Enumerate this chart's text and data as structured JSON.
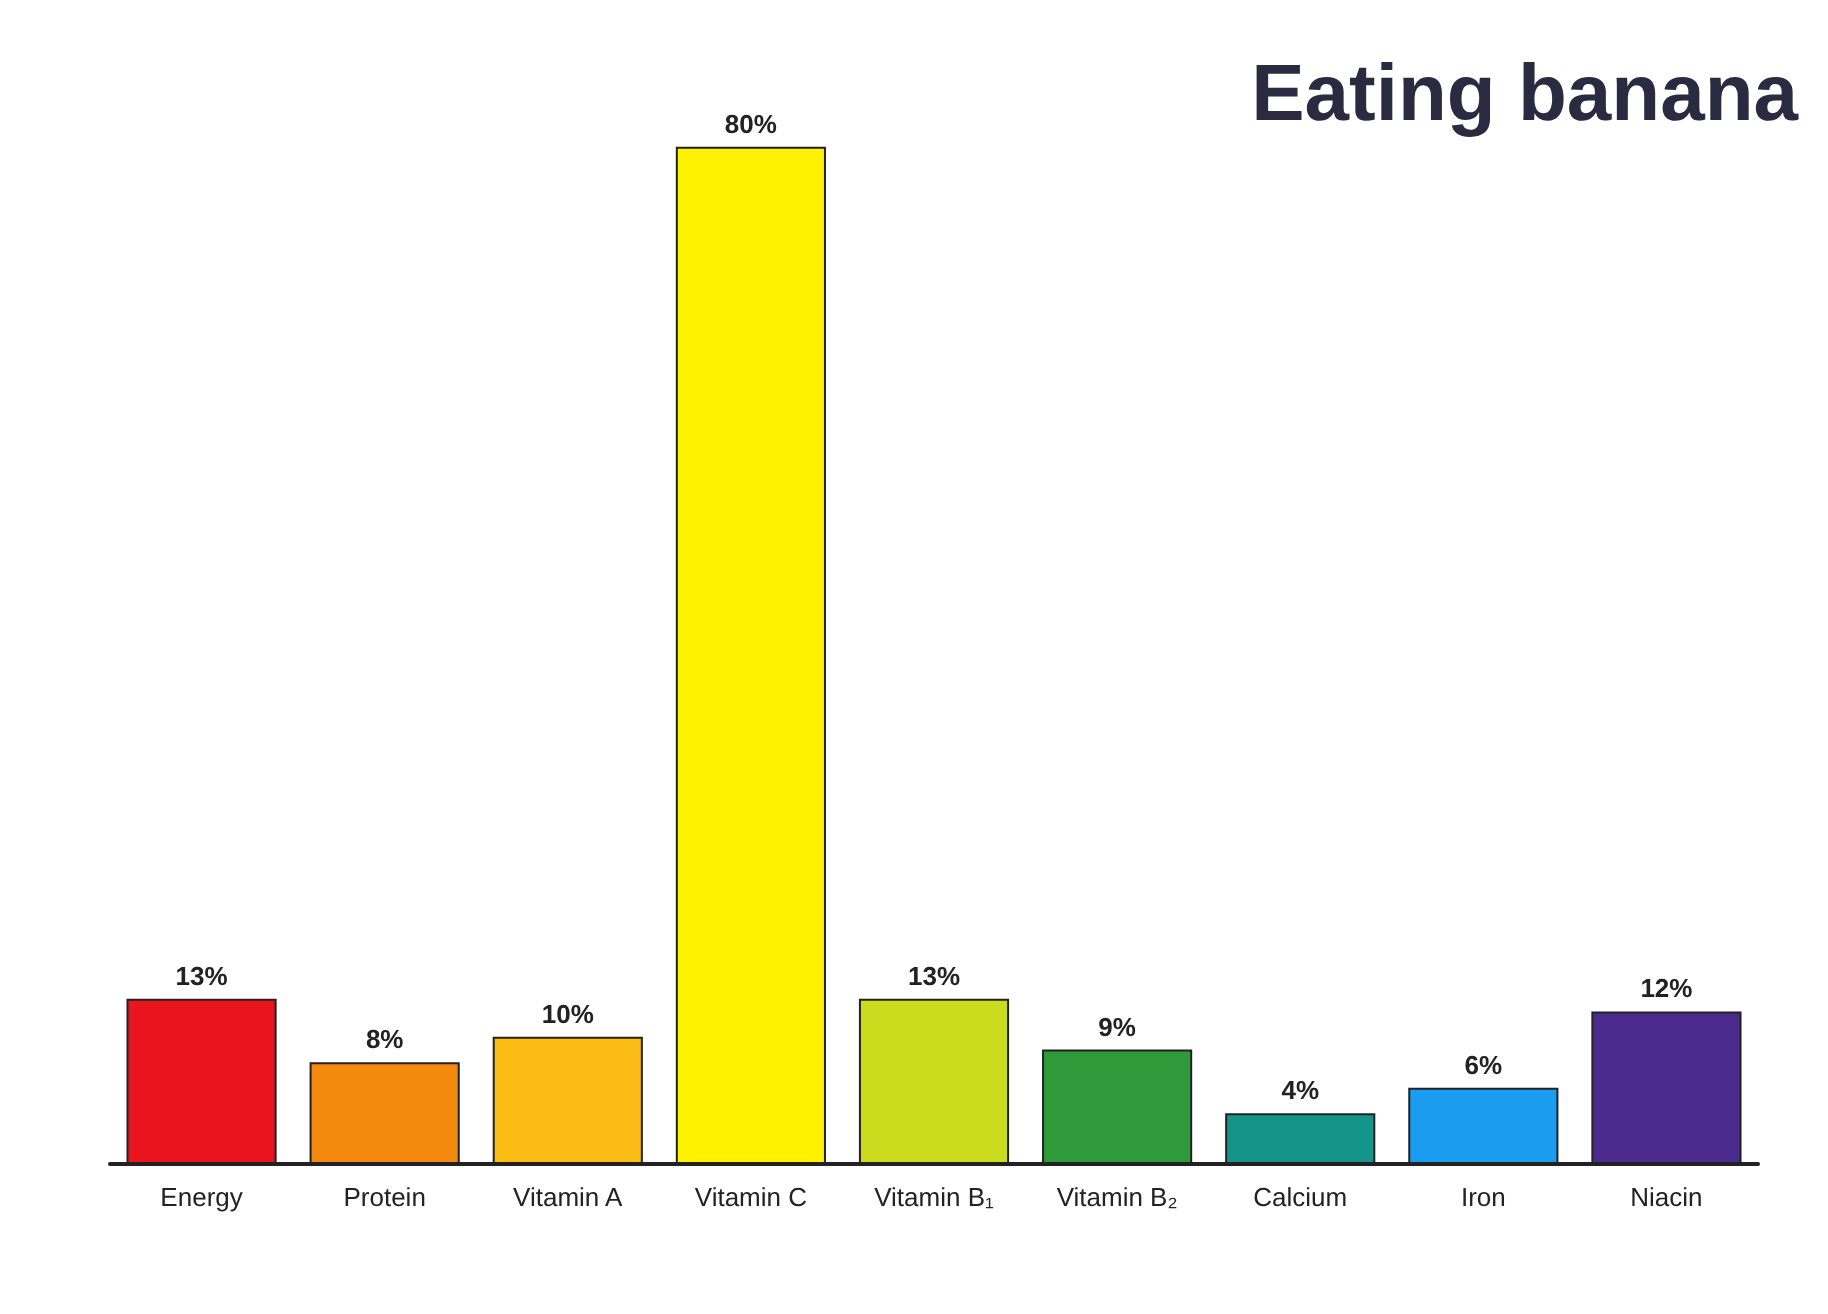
{
  "chart_data": {
    "type": "bar",
    "title": "Eating banana",
    "categories": [
      "Energy",
      "Protein",
      "Vitamin A",
      "Vitamin C",
      "Vitamin B₁",
      "Vitamin B₂",
      "Calcium",
      "Iron",
      "Niacin"
    ],
    "values": [
      13,
      8,
      10,
      80,
      13,
      9,
      4,
      6,
      12
    ],
    "colors": [
      "#e8141e",
      "#f5880f",
      "#fbbd14",
      "#fff200",
      "#cbdc1e",
      "#2f9a3a",
      "#13958a",
      "#1a9cf0",
      "#4b2a8e"
    ],
    "value_labels": [
      "13%",
      "8%",
      "10%",
      "80%",
      "13%",
      "9%",
      "4%",
      "6%",
      "12%"
    ]
  }
}
